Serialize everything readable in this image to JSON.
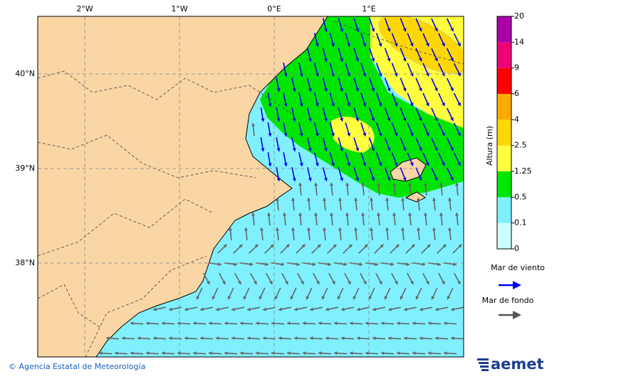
{
  "map": {
    "lon_labels": [
      "2°W",
      "1°W",
      "0°E",
      "1°E"
    ],
    "lat_labels": [
      "40°N",
      "39°N",
      "38°N"
    ],
    "colorbar": {
      "title": "Altura (m)",
      "labels": [
        "0",
        "0.1",
        "0.5",
        "1.25",
        "2.5",
        "4",
        "6",
        "9",
        "14",
        "20"
      ],
      "colors": [
        "#ccffff",
        "#80f0ff",
        "#00e600",
        "#ffff40",
        "#ffd700",
        "#ffaa00",
        "#ff0000",
        "#ee0077",
        "#aa00aa"
      ]
    },
    "legend": {
      "wind_sea": "Mar de viento",
      "swell": "Mar de fondo"
    },
    "footer": {
      "credit": "© Agencia Estatal de Meteorología",
      "logo": "aemet"
    }
  }
}
